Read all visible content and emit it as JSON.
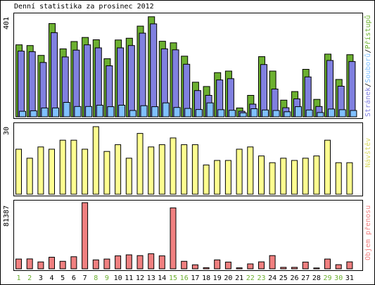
{
  "title": "Denní statistika za prosinec 2012",
  "colors": {
    "pages": "#8080e0",
    "files": "#80c0ff",
    "hits": "#6cb030",
    "visits": "#ffff90",
    "kbytes": "#f08080",
    "weekend_label": "#6cb030"
  },
  "legend_hits": {
    "pages": "Stránek",
    "sep1": "/",
    "files": "Souborů",
    "sep2": "/",
    "hits": "Přístupů"
  },
  "legend_visits": "Návštěv",
  "legend_kbytes": "Objem přenosu",
  "chart_data": [
    {
      "type": "bar",
      "title": "Denní statistika za prosinec 2012",
      "ymax_label": "401",
      "ylim": [
        0,
        401
      ],
      "categories": [
        "1",
        "2",
        "3",
        "4",
        "5",
        "6",
        "7",
        "8",
        "9",
        "10",
        "11",
        "12",
        "13",
        "14",
        "15",
        "16",
        "17",
        "18",
        "19",
        "20",
        "21",
        "22",
        "23",
        "24",
        "25",
        "26",
        "27",
        "28",
        "29",
        "30",
        "31"
      ],
      "weekend_days": [
        "1",
        "2",
        "8",
        "9",
        "15",
        "16",
        "22",
        "23",
        "29",
        "30"
      ],
      "series": [
        {
          "name": "Přístupů",
          "values": [
            285,
            282,
            243,
            369,
            269,
            298,
            314,
            305,
            230,
            304,
            311,
            359,
            396,
            299,
            293,
            240,
            137,
            120,
            175,
            181,
            35,
            85,
            238,
            181,
            66,
            100,
            188,
            69,
            248,
            148,
            246
          ]
        },
        {
          "name": "Stránek",
          "values": [
            260,
            258,
            215,
            333,
            237,
            264,
            285,
            273,
            202,
            273,
            282,
            331,
            368,
            269,
            265,
            208,
            104,
            85,
            146,
            151,
            22,
            50,
            207,
            110,
            36,
            71,
            158,
            41,
            223,
            121,
            219
          ]
        },
        {
          "name": "Souborů",
          "values": [
            22,
            24,
            35,
            35,
            57,
            41,
            41,
            46,
            40,
            46,
            25,
            44,
            40,
            55,
            37,
            33,
            29,
            55,
            28,
            26,
            16,
            32,
            27,
            25,
            20,
            40,
            27,
            17,
            31,
            28,
            25
          ]
        }
      ]
    },
    {
      "type": "bar",
      "ymax_label": "30",
      "ylim": [
        0,
        30
      ],
      "categories": [
        "1",
        "2",
        "3",
        "4",
        "5",
        "6",
        "7",
        "8",
        "9",
        "10",
        "11",
        "12",
        "13",
        "14",
        "15",
        "16",
        "17",
        "18",
        "19",
        "20",
        "21",
        "22",
        "23",
        "24",
        "25",
        "26",
        "27",
        "28",
        "29",
        "30",
        "31"
      ],
      "series": [
        {
          "name": "Návštěv",
          "values": [
            20,
            16,
            21,
            20,
            24,
            24,
            20,
            30,
            19,
            22,
            16,
            27,
            21,
            22,
            25,
            22,
            22,
            13,
            15,
            15,
            20,
            21,
            17,
            14,
            16,
            15,
            16,
            17,
            24,
            14,
            14
          ]
        }
      ]
    },
    {
      "type": "bar",
      "ymax_label": "81387",
      "ylim": [
        0,
        81387
      ],
      "categories": [
        "1",
        "2",
        "3",
        "4",
        "5",
        "6",
        "7",
        "8",
        "9",
        "10",
        "11",
        "12",
        "13",
        "14",
        "15",
        "16",
        "17",
        "18",
        "19",
        "20",
        "21",
        "22",
        "23",
        "24",
        "25",
        "26",
        "27",
        "28",
        "29",
        "30",
        "31"
      ],
      "series": [
        {
          "name": "Objem přenosu",
          "values": [
            12000,
            12200,
            8500,
            14300,
            9300,
            14900,
            81387,
            11000,
            12000,
            15900,
            17200,
            16300,
            18500,
            15900,
            75000,
            9300,
            4900,
            1400,
            11000,
            8300,
            1200,
            6100,
            8600,
            16300,
            1800,
            1800,
            8300,
            1000,
            12000,
            5100,
            8600
          ]
        }
      ]
    }
  ]
}
